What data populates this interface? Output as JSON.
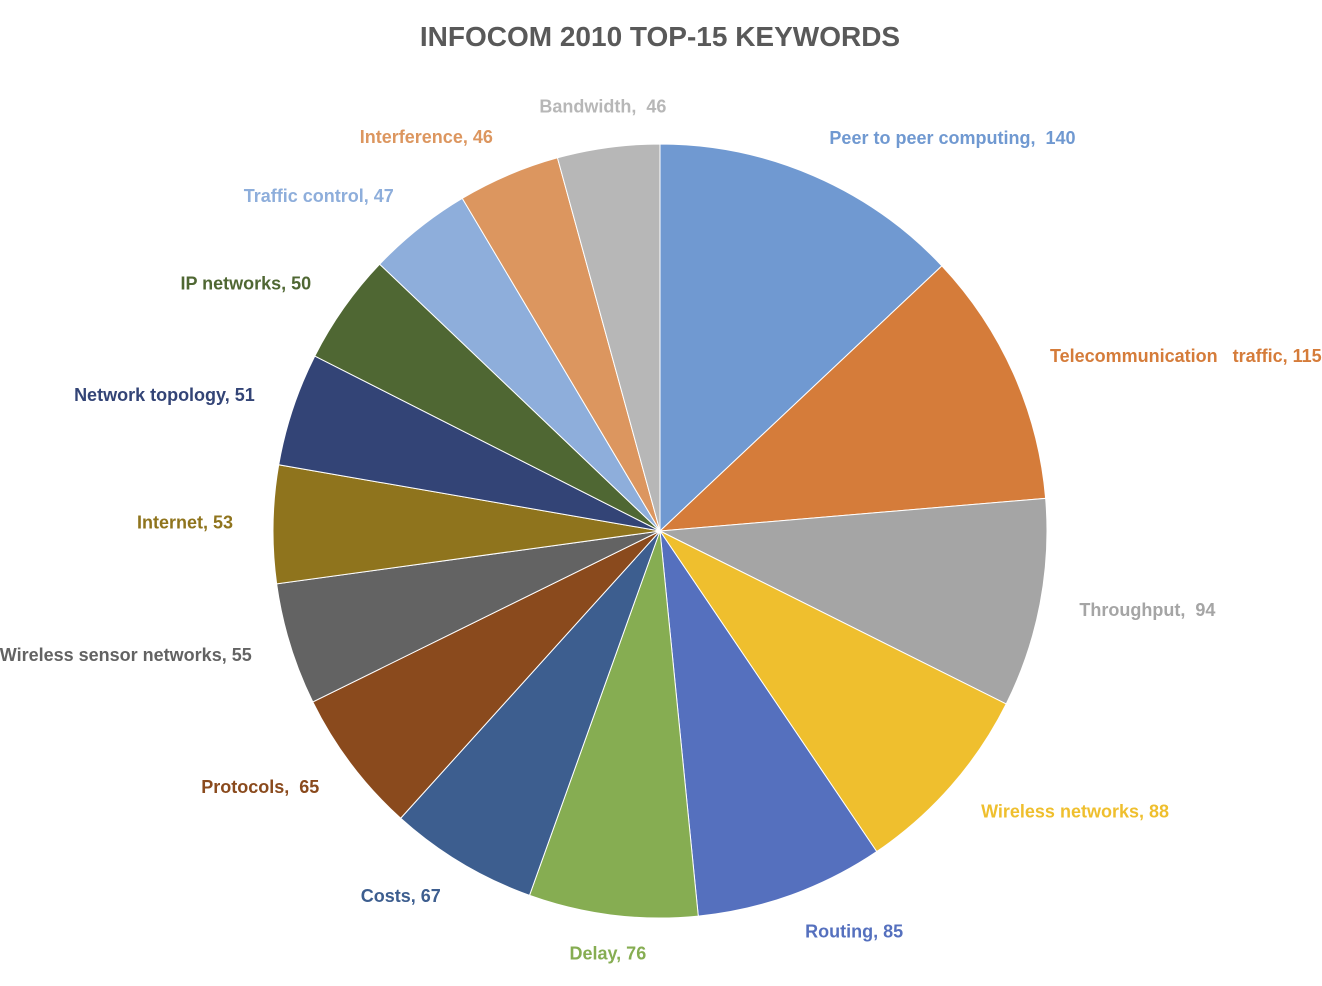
{
  "chart_data": {
    "type": "pie",
    "title": "INFOCOM 2010 TOP-15 KEYWORDS",
    "start_angle_deg": 0,
    "direction": "clockwise",
    "slices": [
      {
        "label": "Peer to peer computing",
        "value": 140,
        "text": "Peer to peer computing,  140",
        "color": "#7099d1"
      },
      {
        "label": "Telecommunication  traffic",
        "value": 115,
        "text": "Telecommunication   traffic, 115",
        "color": "#d57c3a"
      },
      {
        "label": "Throughput",
        "value": 94,
        "text": "Throughput,  94",
        "color": "#a5a5a5"
      },
      {
        "label": "Wireless networks",
        "value": 88,
        "text": "Wireless networks, 88",
        "color": "#efbf2e"
      },
      {
        "label": "Routing",
        "value": 85,
        "text": "Routing, 85",
        "color": "#5570be"
      },
      {
        "label": "Delay",
        "value": 76,
        "text": "Delay, 76",
        "color": "#86ad52"
      },
      {
        "label": "Costs",
        "value": 67,
        "text": "Costs, 67",
        "color": "#3d5e8f"
      },
      {
        "label": "Protocols",
        "value": 65,
        "text": "Protocols,  65",
        "color": "#8a4a1d"
      },
      {
        "label": "Wireless sensor networks",
        "value": 55,
        "text": "Wireless sensor networks, 55",
        "color": "#636363"
      },
      {
        "label": "Internet",
        "value": 53,
        "text": "Internet, 53",
        "color": "#8f741d"
      },
      {
        "label": "Network topology",
        "value": 51,
        "text": "Network topology, 51",
        "color": "#334476"
      },
      {
        "label": "IP networks",
        "value": 50,
        "text": "IP networks, 50",
        "color": "#4f6733"
      },
      {
        "label": "Traffic control",
        "value": 47,
        "text": "Traffic control, 47",
        "color": "#8eaedb"
      },
      {
        "label": "Interference",
        "value": 46,
        "text": "Interference, 46",
        "color": "#dc965f"
      },
      {
        "label": "Bandwidth",
        "value": 46,
        "text": "Bandwidth,  46",
        "color": "#b7b7b7"
      }
    ]
  }
}
